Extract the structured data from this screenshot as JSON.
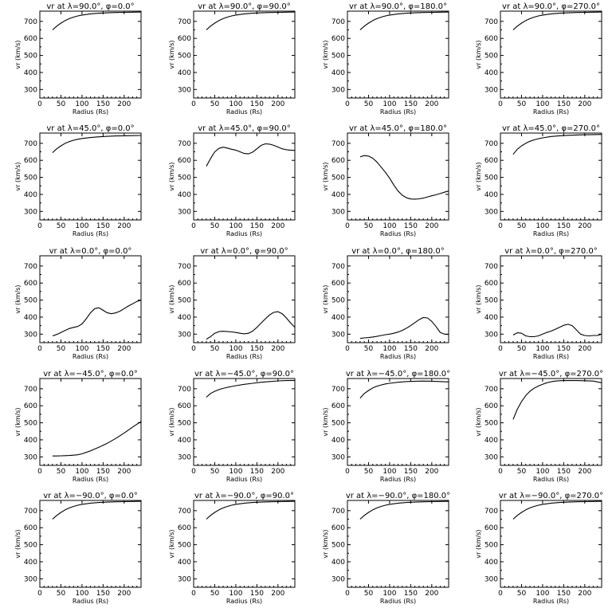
{
  "chart_data": [
    {
      "type": "line",
      "title": "vr at λ=90.0°, φ=0.0°",
      "xlabel": "Radius (Rs)",
      "ylabel": "vr (km/s)",
      "xlim": [
        0,
        240
      ],
      "ylim": [
        250,
        760
      ],
      "xticks": [
        "0",
        "50",
        "100",
        "150",
        "200"
      ],
      "yticks": [
        "300",
        "400",
        "500",
        "600",
        "700"
      ],
      "x": [
        30,
        40,
        50,
        60,
        70,
        80,
        90,
        100,
        120,
        140,
        160,
        180,
        200,
        220,
        240
      ],
      "y": [
        650,
        672,
        690,
        705,
        716,
        725,
        732,
        737,
        744,
        748,
        750,
        752,
        753,
        754,
        755
      ]
    },
    {
      "type": "line",
      "title": "vr at λ=90.0°, φ=90.0°",
      "xlabel": "Radius (Rs)",
      "ylabel": "vr (km/s)",
      "xlim": [
        0,
        240
      ],
      "ylim": [
        250,
        760
      ],
      "xticks": [
        "0",
        "50",
        "100",
        "150",
        "200"
      ],
      "yticks": [
        "300",
        "400",
        "500",
        "600",
        "700"
      ],
      "x": [
        30,
        40,
        50,
        60,
        70,
        80,
        90,
        100,
        120,
        140,
        160,
        180,
        200,
        220,
        240
      ],
      "y": [
        650,
        672,
        690,
        705,
        716,
        725,
        732,
        737,
        744,
        748,
        750,
        752,
        753,
        754,
        755
      ]
    },
    {
      "type": "line",
      "title": "vr at λ=90.0°, φ=180.0°",
      "xlabel": "Radius (Rs)",
      "ylabel": "vr (km/s)",
      "xlim": [
        0,
        240
      ],
      "ylim": [
        250,
        760
      ],
      "xticks": [
        "0",
        "50",
        "100",
        "150",
        "200"
      ],
      "yticks": [
        "300",
        "400",
        "500",
        "600",
        "700"
      ],
      "x": [
        30,
        40,
        50,
        60,
        70,
        80,
        90,
        100,
        120,
        140,
        160,
        180,
        200,
        220,
        240
      ],
      "y": [
        650,
        672,
        690,
        705,
        716,
        725,
        732,
        737,
        744,
        748,
        750,
        752,
        753,
        754,
        755
      ]
    },
    {
      "type": "line",
      "title": "vr at λ=90.0°, φ=270.0°",
      "xlabel": "Radius (Rs)",
      "ylabel": "vr (km/s)",
      "xlim": [
        0,
        240
      ],
      "ylim": [
        250,
        760
      ],
      "xticks": [
        "0",
        "50",
        "100",
        "150",
        "200"
      ],
      "yticks": [
        "300",
        "400",
        "500",
        "600",
        "700"
      ],
      "x": [
        30,
        40,
        50,
        60,
        70,
        80,
        90,
        100,
        120,
        140,
        160,
        180,
        200,
        220,
        240
      ],
      "y": [
        650,
        672,
        690,
        705,
        716,
        725,
        732,
        737,
        744,
        748,
        750,
        752,
        753,
        754,
        755
      ]
    },
    {
      "type": "line",
      "title": "vr at λ=45.0°, φ=0.0°",
      "xlabel": "Radius (Rs)",
      "ylabel": "vr (km/s)",
      "xlim": [
        0,
        240
      ],
      "ylim": [
        250,
        760
      ],
      "xticks": [
        "0",
        "50",
        "100",
        "150",
        "200"
      ],
      "yticks": [
        "300",
        "400",
        "500",
        "600",
        "700"
      ],
      "x": [
        30,
        40,
        50,
        60,
        70,
        80,
        90,
        100,
        120,
        140,
        160,
        180,
        200,
        220,
        240
      ],
      "y": [
        645,
        668,
        685,
        700,
        710,
        718,
        724,
        728,
        734,
        738,
        741,
        743,
        744,
        745,
        746
      ]
    },
    {
      "type": "line",
      "title": "vr at λ=45.0°, φ=90.0°",
      "xlabel": "Radius (Rs)",
      "ylabel": "vr (km/s)",
      "xlim": [
        0,
        240
      ],
      "ylim": [
        250,
        760
      ],
      "xticks": [
        "0",
        "50",
        "100",
        "150",
        "200"
      ],
      "yticks": [
        "300",
        "400",
        "500",
        "600",
        "700"
      ],
      "x": [
        30,
        40,
        50,
        60,
        70,
        80,
        90,
        100,
        110,
        120,
        130,
        140,
        150,
        160,
        170,
        180,
        190,
        200,
        210,
        220,
        230,
        240
      ],
      "y": [
        565,
        610,
        650,
        670,
        677,
        672,
        665,
        660,
        650,
        640,
        638,
        648,
        668,
        688,
        697,
        695,
        688,
        678,
        668,
        662,
        660,
        658
      ]
    },
    {
      "type": "line",
      "title": "vr at λ=45.0°, φ=180.0°",
      "xlabel": "Radius (Rs)",
      "ylabel": "vr (km/s)",
      "xlim": [
        0,
        240
      ],
      "ylim": [
        250,
        760
      ],
      "xticks": [
        "0",
        "50",
        "100",
        "150",
        "200"
      ],
      "yticks": [
        "300",
        "400",
        "500",
        "600",
        "700"
      ],
      "x": [
        30,
        40,
        50,
        60,
        70,
        80,
        90,
        100,
        110,
        120,
        130,
        140,
        150,
        160,
        170,
        180,
        190,
        200,
        210,
        220,
        230,
        240
      ],
      "y": [
        620,
        628,
        625,
        612,
        590,
        560,
        530,
        495,
        455,
        420,
        395,
        380,
        373,
        372,
        374,
        378,
        385,
        392,
        398,
        405,
        413,
        420
      ]
    },
    {
      "type": "line",
      "title": "vr at λ=45.0°, φ=270.0°",
      "xlabel": "Radius (Rs)",
      "ylabel": "vr (km/s)",
      "xlim": [
        0,
        240
      ],
      "ylim": [
        250,
        760
      ],
      "xticks": [
        "0",
        "50",
        "100",
        "150",
        "200"
      ],
      "yticks": [
        "300",
        "400",
        "500",
        "600",
        "700"
      ],
      "x": [
        30,
        40,
        50,
        60,
        70,
        80,
        90,
        100,
        120,
        140,
        160,
        180,
        200,
        220,
        240
      ],
      "y": [
        635,
        665,
        685,
        700,
        712,
        720,
        727,
        732,
        740,
        744,
        747,
        749,
        750,
        751,
        752
      ]
    },
    {
      "type": "line",
      "title": "vr at λ=0.0°, φ=0.0°",
      "xlabel": "Radius (Rs)",
      "ylabel": "vr (km/s)",
      "xlim": [
        0,
        240
      ],
      "ylim": [
        250,
        760
      ],
      "xticks": [
        "0",
        "50",
        "100",
        "150",
        "200"
      ],
      "yticks": [
        "300",
        "400",
        "500",
        "600",
        "700"
      ],
      "x": [
        30,
        40,
        50,
        60,
        70,
        80,
        90,
        100,
        110,
        120,
        130,
        140,
        150,
        160,
        170,
        180,
        190,
        200,
        210,
        220,
        230,
        240
      ],
      "y": [
        290,
        298,
        310,
        322,
        333,
        340,
        345,
        360,
        390,
        425,
        450,
        455,
        440,
        425,
        420,
        425,
        435,
        450,
        465,
        478,
        492,
        500
      ]
    },
    {
      "type": "line",
      "title": "vr at λ=0.0°, φ=90.0°",
      "xlabel": "Radius (Rs)",
      "ylabel": "vr (km/s)",
      "xlim": [
        0,
        240
      ],
      "ylim": [
        250,
        760
      ],
      "xticks": [
        "0",
        "50",
        "100",
        "150",
        "200"
      ],
      "yticks": [
        "300",
        "400",
        "500",
        "600",
        "700"
      ],
      "x": [
        30,
        40,
        50,
        60,
        70,
        80,
        90,
        100,
        110,
        120,
        130,
        140,
        150,
        160,
        170,
        180,
        190,
        200,
        210,
        220,
        230,
        240
      ],
      "y": [
        270,
        285,
        305,
        315,
        317,
        315,
        313,
        310,
        305,
        302,
        305,
        318,
        340,
        365,
        390,
        413,
        428,
        432,
        420,
        395,
        365,
        340
      ]
    },
    {
      "type": "line",
      "title": "vr at λ=0.0°, φ=180.0°",
      "xlabel": "Radius (Rs)",
      "ylabel": "vr (km/s)",
      "xlim": [
        0,
        240
      ],
      "ylim": [
        250,
        760
      ],
      "xticks": [
        "0",
        "50",
        "100",
        "150",
        "200"
      ],
      "yticks": [
        "300",
        "400",
        "500",
        "600",
        "700"
      ],
      "x": [
        30,
        40,
        50,
        60,
        70,
        80,
        90,
        100,
        110,
        120,
        130,
        140,
        150,
        160,
        170,
        180,
        190,
        200,
        210,
        220,
        230,
        240
      ],
      "y": [
        275,
        278,
        280,
        283,
        287,
        292,
        297,
        300,
        305,
        312,
        322,
        335,
        350,
        368,
        385,
        398,
        395,
        375,
        345,
        310,
        300,
        298
      ]
    },
    {
      "type": "line",
      "title": "vr at λ=0.0°, φ=270.0°",
      "xlabel": "Radius (Rs)",
      "ylabel": "vr (km/s)",
      "xlim": [
        0,
        240
      ],
      "ylim": [
        250,
        760
      ],
      "xticks": [
        "0",
        "50",
        "100",
        "150",
        "200"
      ],
      "yticks": [
        "300",
        "400",
        "500",
        "600",
        "700"
      ],
      "x": [
        30,
        40,
        50,
        60,
        70,
        80,
        90,
        100,
        110,
        120,
        130,
        140,
        150,
        160,
        170,
        180,
        190,
        200,
        210,
        220,
        230,
        240
      ],
      "y": [
        295,
        308,
        305,
        290,
        285,
        285,
        290,
        300,
        310,
        318,
        328,
        340,
        352,
        358,
        350,
        325,
        300,
        292,
        290,
        292,
        292,
        300
      ]
    },
    {
      "type": "line",
      "title": "vr at λ=−45.0°, φ=0.0°",
      "xlabel": "Radius (Rs)",
      "ylabel": "vr (km/s)",
      "xlim": [
        0,
        240
      ],
      "ylim": [
        250,
        760
      ],
      "xticks": [
        "0",
        "50",
        "100",
        "150",
        "200"
      ],
      "yticks": [
        "300",
        "400",
        "500",
        "600",
        "700"
      ],
      "x": [
        30,
        40,
        50,
        60,
        70,
        80,
        90,
        100,
        120,
        140,
        160,
        180,
        200,
        220,
        240
      ],
      "y": [
        305,
        305,
        306,
        307,
        308,
        310,
        312,
        318,
        335,
        356,
        380,
        408,
        440,
        475,
        508
      ]
    },
    {
      "type": "line",
      "title": "vr at λ=−45.0°, φ=90.0°",
      "xlabel": "Radius (Rs)",
      "ylabel": "vr (km/s)",
      "xlim": [
        0,
        240
      ],
      "ylim": [
        250,
        760
      ],
      "xticks": [
        "0",
        "50",
        "100",
        "150",
        "200"
      ],
      "yticks": [
        "300",
        "400",
        "500",
        "600",
        "700"
      ],
      "x": [
        30,
        40,
        50,
        60,
        70,
        80,
        90,
        100,
        120,
        140,
        160,
        180,
        200,
        220,
        240
      ],
      "y": [
        650,
        672,
        685,
        695,
        702,
        708,
        713,
        718,
        726,
        732,
        738,
        742,
        746,
        748,
        749
      ]
    },
    {
      "type": "line",
      "title": "vr at λ=−45.0°, φ=180.0°",
      "xlabel": "Radius (Rs)",
      "ylabel": "vr (km/s)",
      "xlim": [
        0,
        240
      ],
      "ylim": [
        250,
        760
      ],
      "xticks": [
        "0",
        "50",
        "100",
        "150",
        "200"
      ],
      "yticks": [
        "300",
        "400",
        "500",
        "600",
        "700"
      ],
      "x": [
        30,
        40,
        50,
        60,
        70,
        80,
        90,
        100,
        120,
        140,
        160,
        180,
        200,
        220,
        240
      ],
      "y": [
        645,
        672,
        690,
        705,
        715,
        722,
        728,
        732,
        738,
        742,
        744,
        745,
        744,
        742,
        740
      ]
    },
    {
      "type": "line",
      "title": "vr at λ=−45.0°, φ=270.0°",
      "xlabel": "Radius (Rs)",
      "ylabel": "vr (km/s)",
      "xlim": [
        0,
        240
      ],
      "ylim": [
        250,
        760
      ],
      "xticks": [
        "0",
        "50",
        "100",
        "150",
        "200"
      ],
      "yticks": [
        "300",
        "400",
        "500",
        "600",
        "700"
      ],
      "x": [
        30,
        40,
        50,
        60,
        70,
        80,
        90,
        100,
        110,
        120,
        130,
        140,
        150,
        160,
        180,
        200,
        220,
        240
      ],
      "y": [
        520,
        580,
        625,
        660,
        685,
        703,
        716,
        726,
        735,
        741,
        745,
        747,
        748,
        748,
        748,
        747,
        745,
        735
      ]
    },
    {
      "type": "line",
      "title": "vr at λ=−90.0°, φ=0.0°",
      "xlabel": "Radius (Rs)",
      "ylabel": "vr (km/s)",
      "xlim": [
        0,
        240
      ],
      "ylim": [
        250,
        760
      ],
      "xticks": [
        "0",
        "50",
        "100",
        "150",
        "200"
      ],
      "yticks": [
        "300",
        "400",
        "500",
        "600",
        "700"
      ],
      "x": [
        30,
        40,
        50,
        60,
        70,
        80,
        90,
        100,
        120,
        140,
        160,
        180,
        200,
        220,
        240
      ],
      "y": [
        650,
        672,
        690,
        705,
        716,
        725,
        732,
        737,
        744,
        748,
        750,
        752,
        753,
        754,
        755
      ]
    },
    {
      "type": "line",
      "title": "vr at λ=−90.0°, φ=90.0°",
      "xlabel": "Radius (Rs)",
      "ylabel": "vr (km/s)",
      "xlim": [
        0,
        240
      ],
      "ylim": [
        250,
        760
      ],
      "xticks": [
        "0",
        "50",
        "100",
        "150",
        "200"
      ],
      "yticks": [
        "300",
        "400",
        "500",
        "600",
        "700"
      ],
      "x": [
        30,
        40,
        50,
        60,
        70,
        80,
        90,
        100,
        120,
        140,
        160,
        180,
        200,
        220,
        240
      ],
      "y": [
        650,
        672,
        690,
        705,
        716,
        725,
        732,
        737,
        744,
        748,
        750,
        752,
        753,
        754,
        755
      ]
    },
    {
      "type": "line",
      "title": "vr at λ=−90.0°, φ=180.0°",
      "xlabel": "Radius (Rs)",
      "ylabel": "vr (km/s)",
      "xlim": [
        0,
        240
      ],
      "ylim": [
        250,
        760
      ],
      "xticks": [
        "0",
        "50",
        "100",
        "150",
        "200"
      ],
      "yticks": [
        "300",
        "400",
        "500",
        "600",
        "700"
      ],
      "x": [
        30,
        40,
        50,
        60,
        70,
        80,
        90,
        100,
        120,
        140,
        160,
        180,
        200,
        220,
        240
      ],
      "y": [
        650,
        672,
        690,
        705,
        716,
        725,
        732,
        737,
        744,
        748,
        750,
        752,
        753,
        754,
        755
      ]
    },
    {
      "type": "line",
      "title": "vr at λ=−90.0°, φ=270.0°",
      "xlabel": "Radius (Rs)",
      "ylabel": "vr (km/s)",
      "xlim": [
        0,
        240
      ],
      "ylim": [
        250,
        760
      ],
      "xticks": [
        "0",
        "50",
        "100",
        "150",
        "200"
      ],
      "yticks": [
        "300",
        "400",
        "500",
        "600",
        "700"
      ],
      "x": [
        30,
        40,
        50,
        60,
        70,
        80,
        90,
        100,
        120,
        140,
        160,
        180,
        200,
        220,
        240
      ],
      "y": [
        650,
        672,
        690,
        705,
        716,
        725,
        732,
        737,
        744,
        748,
        750,
        752,
        753,
        754,
        755
      ]
    }
  ]
}
